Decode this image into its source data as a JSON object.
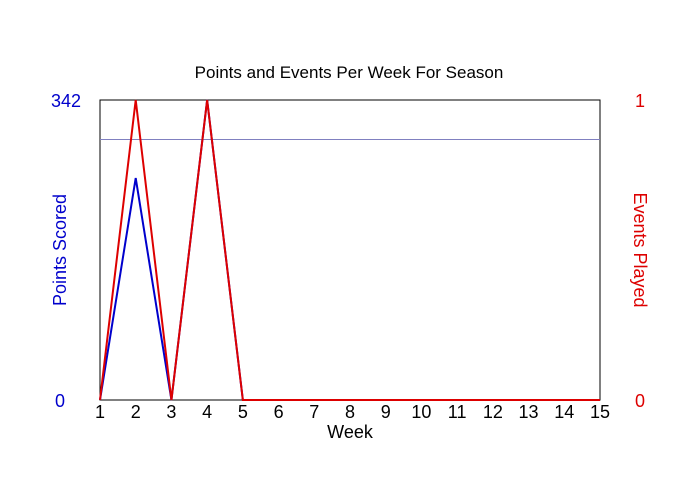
{
  "chart_data": {
    "type": "line",
    "title": "Points and Events Per Week For Season",
    "xlabel": "Week",
    "x": [
      1,
      2,
      3,
      4,
      5,
      6,
      7,
      8,
      9,
      10,
      11,
      12,
      13,
      14,
      15
    ],
    "x_tick_labels": [
      "1",
      "2",
      "3",
      "4",
      "5",
      "6",
      "7",
      "8",
      "9",
      "10",
      "11",
      "12",
      "13",
      "14",
      "15"
    ],
    "left_axis": {
      "label": "Points Scored",
      "min_label": "0",
      "max_label": "342",
      "ylim": [
        0,
        342
      ],
      "color": "#0000cc"
    },
    "right_axis": {
      "label": "Events Played",
      "min_label": "0",
      "max_label": "1",
      "ylim": [
        0,
        1
      ],
      "color": "#dd0000"
    },
    "reference_line": {
      "axis": "left",
      "value": 297,
      "color": "#8080c0"
    },
    "series": [
      {
        "name": "Points Scored",
        "axis": "left",
        "color": "#0000cc",
        "values": [
          0,
          253,
          0,
          342,
          0,
          0,
          0,
          0,
          0,
          0,
          0,
          0,
          0,
          0,
          0
        ]
      },
      {
        "name": "Events Played",
        "axis": "right",
        "color": "#dd0000",
        "values": [
          0,
          1,
          0,
          1,
          0,
          0,
          0,
          0,
          0,
          0,
          0,
          0,
          0,
          0,
          0
        ]
      }
    ],
    "grid": false,
    "legend": "none"
  }
}
